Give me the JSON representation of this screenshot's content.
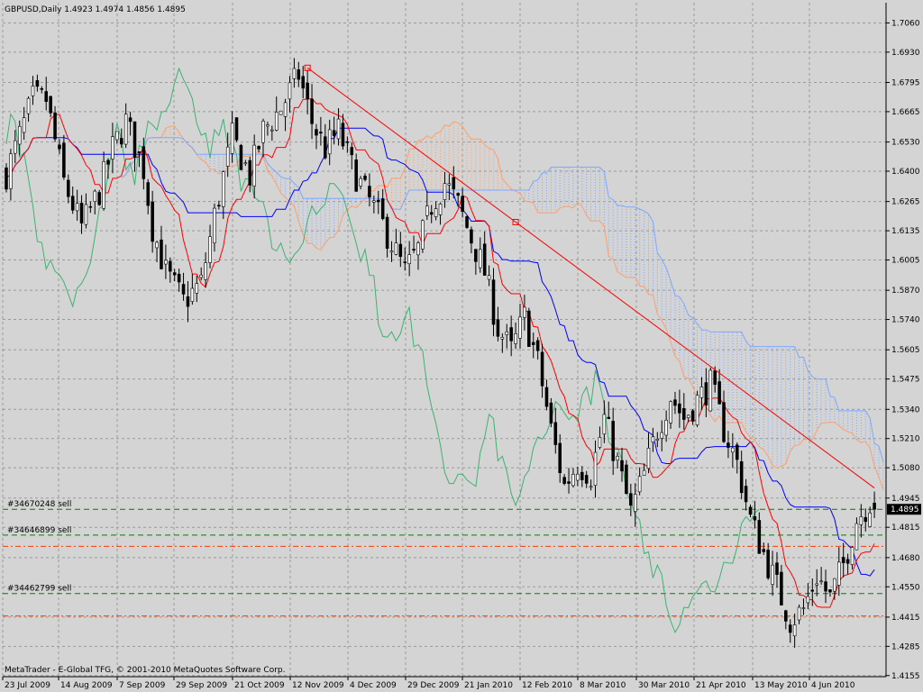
{
  "window": {
    "header": "GBPUSD,Daily  1.4923 1.4974 1.4856 1.4895",
    "footer": "MetaTrader - E-Global TFG, © 2001-2010 MetaQuotes Software Corp.",
    "current_price": "1.4895"
  },
  "orders": [
    {
      "label": "#34670248 sell",
      "price": 1.4895,
      "color": "#008000"
    },
    {
      "label": "#34646899 sell",
      "price": 1.478,
      "color": "#008000"
    },
    {
      "label": "#34462799 sell",
      "price": 1.452,
      "color": "#008000"
    }
  ],
  "stop_levels": [
    {
      "price": 1.473,
      "color": "#ff3b00"
    },
    {
      "price": 1.442,
      "color": "#ff3b00"
    }
  ],
  "colors": {
    "background": "#d4d4d4",
    "grid": "#9a9a9a",
    "candle_bull": "#ffffff",
    "candle_bear": "#000000",
    "tenkan": "#ff0000",
    "kijun": "#0000ff",
    "chikou": "#3cb371",
    "kumo_bull": "#ff9f6b",
    "kumo_bear": "#7fa8ff",
    "trendline": "#ff0000",
    "current_price_bg": "#000000"
  },
  "chart_data": {
    "type": "candlestick",
    "symbol": "GBPUSD",
    "timeframe": "Daily",
    "ylim": [
      1.415,
      1.715
    ],
    "y_ticks": [
      "1.7060",
      "1.6930",
      "1.6795",
      "1.6665",
      "1.6530",
      "1.6400",
      "1.6265",
      "1.6135",
      "1.6005",
      "1.5870",
      "1.5740",
      "1.5605",
      "1.5475",
      "1.5340",
      "1.5210",
      "1.5080",
      "1.4945",
      "1.4815",
      "1.4680",
      "1.4550",
      "1.4415",
      "1.4285",
      "1.4155"
    ],
    "x_ticks": [
      "23 Jul 2009",
      "14 Aug 2009",
      "7 Sep 2009",
      "29 Sep 2009",
      "21 Oct 2009",
      "12 Nov 2009",
      "4 Dec 2009",
      "29 Dec 2009",
      "21 Jan 2010",
      "12 Feb 2010",
      "8 Mar 2010",
      "30 Mar 2010",
      "21 Apr 2010",
      "13 May 2010",
      "4 Jun 2010"
    ],
    "close_anchors": [
      [
        0,
        1.639
      ],
      [
        6,
        1.672
      ],
      [
        9,
        1.672
      ],
      [
        13,
        1.635
      ],
      [
        17,
        1.615
      ],
      [
        21,
        1.631
      ],
      [
        24,
        1.65
      ],
      [
        27,
        1.662
      ],
      [
        31,
        1.641
      ],
      [
        33,
        1.615
      ],
      [
        36,
        1.595
      ],
      [
        40,
        1.582
      ],
      [
        44,
        1.59
      ],
      [
        47,
        1.62
      ],
      [
        51,
        1.655
      ],
      [
        55,
        1.638
      ],
      [
        58,
        1.658
      ],
      [
        62,
        1.668
      ],
      [
        66,
        1.683
      ],
      [
        69,
        1.662
      ],
      [
        72,
        1.65
      ],
      [
        75,
        1.658
      ],
      [
        78,
        1.642
      ],
      [
        81,
        1.63
      ],
      [
        84,
        1.62
      ],
      [
        87,
        1.608
      ],
      [
        90,
        1.595
      ],
      [
        93,
        1.605
      ],
      [
        96,
        1.625
      ],
      [
        99,
        1.635
      ],
      [
        102,
        1.625
      ],
      [
        105,
        1.61
      ],
      [
        108,
        1.595
      ],
      [
        111,
        1.57
      ],
      [
        114,
        1.56
      ],
      [
        117,
        1.575
      ],
      [
        120,
        1.555
      ],
      [
        123,
        1.525
      ],
      [
        126,
        1.5
      ],
      [
        129,
        1.51
      ],
      [
        132,
        1.505
      ],
      [
        135,
        1.53
      ],
      [
        138,
        1.51
      ],
      [
        141,
        1.488
      ],
      [
        144,
        1.505
      ],
      [
        147,
        1.525
      ],
      [
        150,
        1.54
      ],
      [
        153,
        1.53
      ],
      [
        156,
        1.538
      ],
      [
        159,
        1.545
      ],
      [
        162,
        1.525
      ],
      [
        165,
        1.51
      ],
      [
        168,
        1.485
      ],
      [
        171,
        1.47
      ],
      [
        174,
        1.455
      ],
      [
        177,
        1.44
      ],
      [
        180,
        1.445
      ],
      [
        183,
        1.46
      ],
      [
        186,
        1.45
      ],
      [
        189,
        1.465
      ],
      [
        192,
        1.485
      ],
      [
        195,
        1.493
      ],
      [
        196,
        1.4895
      ]
    ],
    "total_bars": 197,
    "trendline": {
      "start": [
        68,
        1.686
      ],
      "end": [
        196,
        1.499
      ]
    },
    "indicators": [
      "Tenkan-sen",
      "Kijun-sen",
      "Chikou Span",
      "Senkou Span A",
      "Senkou Span B"
    ]
  }
}
